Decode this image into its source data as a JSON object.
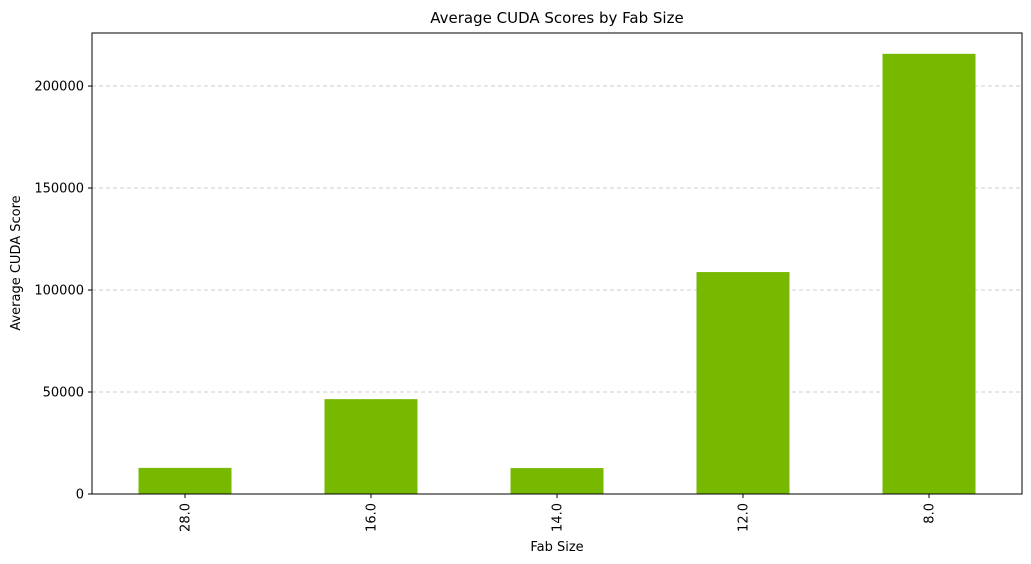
{
  "chart_data": {
    "type": "bar",
    "title": "Average CUDA Scores by Fab Size",
    "xlabel": "Fab Size",
    "ylabel": "Average CUDA Score",
    "categories": [
      "28.0",
      "16.0",
      "14.0",
      "12.0",
      "8.0"
    ],
    "values": [
      12800,
      46500,
      12700,
      108800,
      215800
    ],
    "ylim": [
      0,
      226000
    ],
    "yticks": [
      0,
      50000,
      100000,
      150000,
      200000
    ],
    "ytick_labels": [
      "0",
      "50000",
      "100000",
      "150000",
      "200000"
    ],
    "bar_color": "#76b900",
    "grid": "y-dashed",
    "xtick_rotation": "vertical"
  }
}
